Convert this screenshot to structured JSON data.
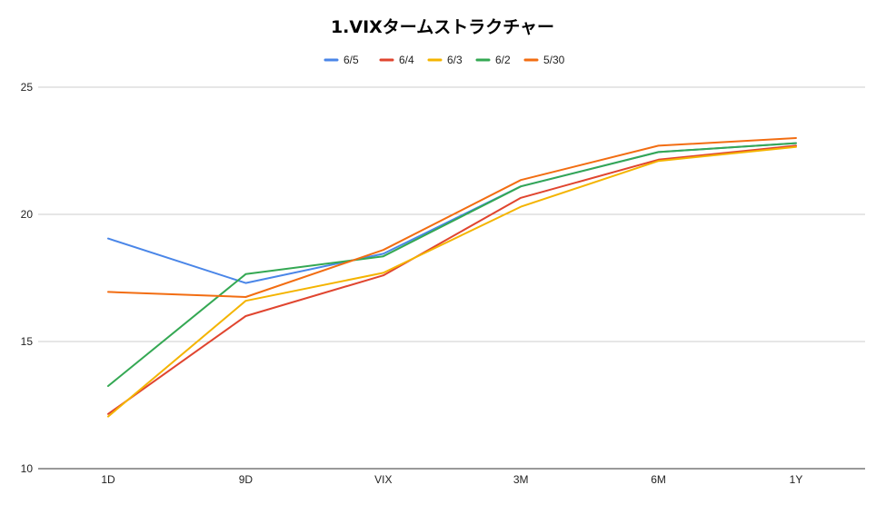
{
  "chart_data": {
    "type": "line",
    "title": "1.VIXタームストラクチャー",
    "xlabel": "",
    "ylabel": "",
    "categories": [
      "1D",
      "9D",
      "VIX",
      "3M",
      "6M",
      "1Y"
    ],
    "ylim": [
      10,
      25
    ],
    "yticks": [
      10,
      15,
      20,
      25
    ],
    "grid": true,
    "legend_position": "top",
    "series": [
      {
        "name": "6/5",
        "color": "#4a86e8",
        "values": [
          19.05,
          17.3,
          18.45,
          21.1,
          22.45,
          22.8
        ]
      },
      {
        "name": "6/4",
        "color": "#e0452f",
        "values": [
          12.15,
          16.0,
          17.6,
          20.65,
          22.15,
          22.7
        ]
      },
      {
        "name": "6/3",
        "color": "#f4b400",
        "values": [
          12.05,
          16.6,
          17.7,
          20.3,
          22.1,
          22.65
        ]
      },
      {
        "name": "6/2",
        "color": "#34a853",
        "values": [
          13.25,
          17.65,
          18.35,
          21.1,
          22.45,
          22.8
        ]
      },
      {
        "name": "5/30",
        "color": "#f26d12",
        "values": [
          16.95,
          16.75,
          18.6,
          21.35,
          22.7,
          23.0
        ]
      }
    ]
  }
}
